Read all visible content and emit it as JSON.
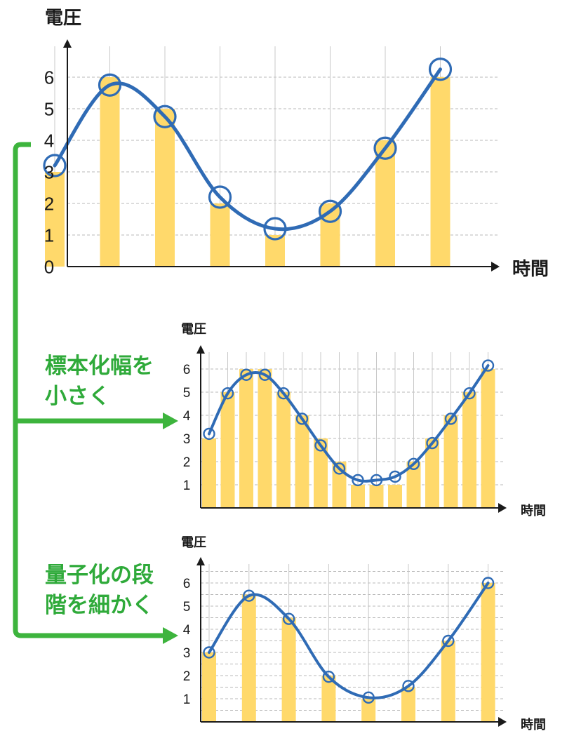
{
  "colors": {
    "bar": "#ffd96b",
    "curve": "#2f6bb5",
    "marker_fill": "#ffffff",
    "grid": "#b8b8b8",
    "axis": "#1a1a1a",
    "arrow": "#3db43d"
  },
  "annotations": {
    "sampling": [
      "標本化幅を",
      "小さく"
    ],
    "quantization": [
      "量子化の段",
      "階を細かく"
    ]
  },
  "chart_data": [
    {
      "type": "bar",
      "ylabel": "電圧",
      "xlabel": "時間",
      "y_ticks": [
        "0",
        "1",
        "2",
        "3",
        "4",
        "5",
        "6"
      ],
      "ylim": [
        0,
        7
      ],
      "grid_step": 1,
      "values": [
        3,
        6,
        5,
        2,
        1,
        2,
        4,
        6
      ],
      "samples": [
        3.2,
        5.75,
        4.75,
        2.2,
        1.2,
        1.75,
        3.75,
        6.25
      ]
    },
    {
      "type": "bar",
      "ylabel": "電圧",
      "xlabel": "時間",
      "y_ticks": [
        "1",
        "2",
        "3",
        "4",
        "5",
        "6"
      ],
      "ylim": [
        0,
        6.6
      ],
      "grid_step": 1,
      "values": [
        3,
        5,
        6,
        6,
        5,
        4,
        3,
        2,
        1,
        1,
        1,
        2,
        3,
        4,
        5,
        6
      ],
      "samples": [
        3.2,
        4.95,
        5.75,
        5.75,
        4.95,
        3.85,
        2.7,
        1.7,
        1.2,
        1.2,
        1.35,
        1.9,
        2.8,
        3.85,
        4.95,
        6.15
      ]
    },
    {
      "type": "bar",
      "ylabel": "電圧",
      "xlabel": "時間",
      "y_ticks": [
        "1",
        "2",
        "3",
        "4",
        "5",
        "6"
      ],
      "ylim": [
        0,
        6.6
      ],
      "grid_step": 0.5,
      "values": [
        3,
        5.5,
        4.5,
        2,
        1,
        1.5,
        3.5,
        6
      ],
      "samples": [
        3.0,
        5.45,
        4.45,
        1.95,
        1.05,
        1.55,
        3.5,
        6.0
      ]
    }
  ]
}
